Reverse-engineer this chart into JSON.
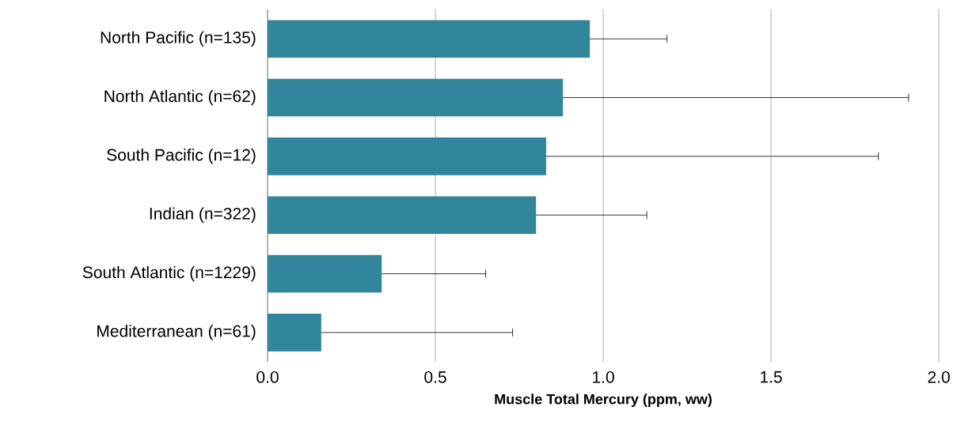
{
  "chart_data": {
    "type": "bar",
    "orientation": "horizontal",
    "xlabel": "Muscle Total Mercury (ppm, ww)",
    "categories": [
      "North Pacific (n=135)",
      "North Atlantic (n=62)",
      "South Pacific (n=12)",
      "Indian (n=322)",
      "South Atlantic (n=1229)",
      "Mediterranean (n=61)"
    ],
    "values": [
      0.96,
      0.88,
      0.83,
      0.8,
      0.34,
      0.16
    ],
    "errors": [
      [
        0.96,
        1.19
      ],
      [
        0.88,
        1.91
      ],
      [
        0.83,
        1.82
      ],
      [
        0.8,
        1.13
      ],
      [
        0.34,
        0.65
      ],
      [
        0.16,
        0.73
      ]
    ],
    "color": "#31869c",
    "xlim": [
      0,
      2
    ],
    "xticks": [
      {
        "value": 0,
        "label": "0.0"
      },
      {
        "value": 0.5,
        "label": "0.5"
      },
      {
        "value": 1,
        "label": "1.0"
      },
      {
        "value": 1.5,
        "label": "1.5"
      },
      {
        "value": 2,
        "label": "2.0"
      }
    ],
    "grid": "x"
  }
}
